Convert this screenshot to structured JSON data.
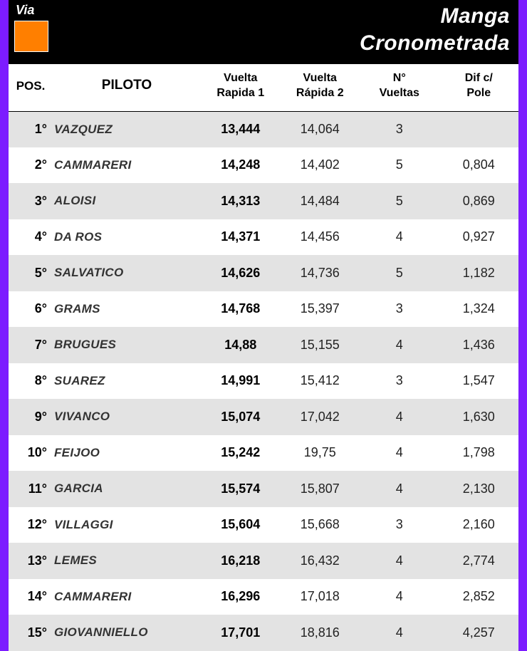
{
  "header": {
    "via": "Via",
    "title_line1": "Manga",
    "title_line2": "Cronometrada",
    "swatch_color": "#ff7f00"
  },
  "columns": {
    "pos": "POS.",
    "piloto": "PILOTO",
    "vr1_l1": "Vuelta",
    "vr1_l2": "Rapida 1",
    "vr2_l1": "Vuelta",
    "vr2_l2": "Rápida 2",
    "nv_l1": "N°",
    "nv_l2": "Vueltas",
    "dif_l1": "Dif c/",
    "dif_l2": "Pole"
  },
  "rows": [
    {
      "pos": "1°",
      "piloto": "VAZQUEZ",
      "vr1": "13,444",
      "vr2": "14,064",
      "nv": "3",
      "dif": ""
    },
    {
      "pos": "2°",
      "piloto": "CAMMARERI",
      "vr1": "14,248",
      "vr2": "14,402",
      "nv": "5",
      "dif": "0,804"
    },
    {
      "pos": "3°",
      "piloto": "ALOISI",
      "vr1": "14,313",
      "vr2": "14,484",
      "nv": "5",
      "dif": "0,869"
    },
    {
      "pos": "4°",
      "piloto": "DA ROS",
      "vr1": "14,371",
      "vr2": "14,456",
      "nv": "4",
      "dif": "0,927"
    },
    {
      "pos": "5°",
      "piloto": "SALVATICO",
      "vr1": "14,626",
      "vr2": "14,736",
      "nv": "5",
      "dif": "1,182"
    },
    {
      "pos": "6°",
      "piloto": "GRAMS",
      "vr1": "14,768",
      "vr2": "15,397",
      "nv": "3",
      "dif": "1,324"
    },
    {
      "pos": "7°",
      "piloto": "BRUGUES",
      "vr1": "14,88",
      "vr2": "15,155",
      "nv": "4",
      "dif": "1,436"
    },
    {
      "pos": "8°",
      "piloto": "SUAREZ",
      "vr1": "14,991",
      "vr2": "15,412",
      "nv": "3",
      "dif": "1,547"
    },
    {
      "pos": "9°",
      "piloto": "VIVANCO",
      "vr1": "15,074",
      "vr2": "17,042",
      "nv": "4",
      "dif": "1,630"
    },
    {
      "pos": "10°",
      "piloto": "FEIJOO",
      "vr1": "15,242",
      "vr2": "19,75",
      "nv": "4",
      "dif": "1,798"
    },
    {
      "pos": "11°",
      "piloto": "GARCIA",
      "vr1": "15,574",
      "vr2": "15,807",
      "nv": "4",
      "dif": "2,130"
    },
    {
      "pos": "12°",
      "piloto": "VILLAGGI",
      "vr1": "15,604",
      "vr2": "15,668",
      "nv": "3",
      "dif": "2,160"
    },
    {
      "pos": "13°",
      "piloto": "LEMES",
      "vr1": "16,218",
      "vr2": "16,432",
      "nv": "4",
      "dif": "2,774"
    },
    {
      "pos": "14°",
      "piloto": "CAMMARERI",
      "vr1": "16,296",
      "vr2": "17,018",
      "nv": "4",
      "dif": "2,852"
    },
    {
      "pos": "15°",
      "piloto": "GIOVANNIELLO",
      "vr1": "17,701",
      "vr2": "18,816",
      "nv": "4",
      "dif": "4,257"
    }
  ],
  "styles": {
    "frame_bg": "#7c1cff",
    "header_bg": "#000000",
    "row_odd_bg": "#e3e3e3",
    "row_even_bg": "#ffffff"
  }
}
